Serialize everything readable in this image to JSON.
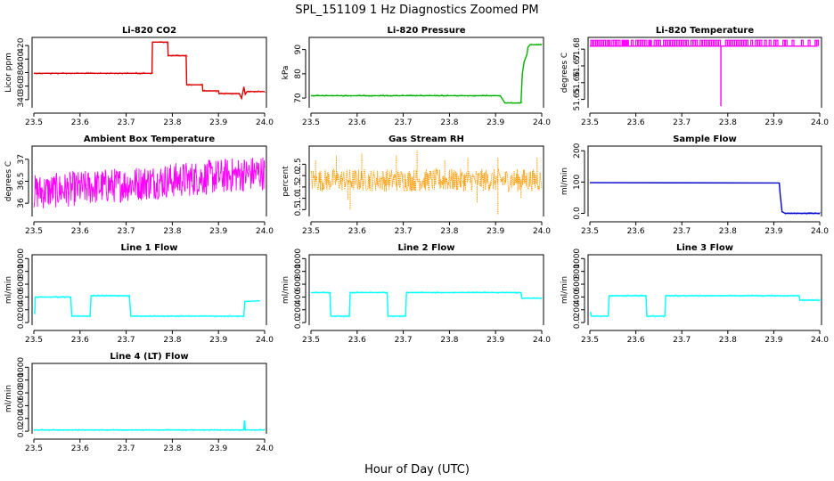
{
  "figure": {
    "title": "SPL_151109  1 Hz Diagnostics Zoomed PM",
    "xlabel": "Hour of Day (UTC)"
  },
  "chart_data": [
    {
      "type": "line",
      "title": "Li-820 CO2",
      "ylabel": "Licor ppm",
      "color": "#dd0000",
      "xlim": [
        23.5,
        24.0
      ],
      "ylim": [
        328,
        432
      ],
      "xticks": [
        23.5,
        23.6,
        23.7,
        23.8,
        23.9,
        24.0
      ],
      "yticks": [
        340,
        360,
        380,
        400,
        420
      ],
      "x": [
        23.5,
        23.756,
        23.757,
        23.79,
        23.791,
        23.83,
        23.831,
        23.865,
        23.866,
        23.9,
        23.901,
        23.945,
        23.95,
        23.955,
        23.958,
        23.962,
        23.965,
        24.0
      ],
      "y": [
        379,
        379,
        425,
        425,
        405,
        405,
        362,
        362,
        353,
        353,
        349,
        349,
        342,
        359,
        348,
        352,
        352,
        352
      ]
    },
    {
      "type": "line",
      "title": "Li-820 Pressure",
      "ylabel": "kPa",
      "color": "#00b000",
      "xlim": [
        23.5,
        24.0
      ],
      "ylim": [
        66,
        95
      ],
      "xticks": [
        23.5,
        23.6,
        23.7,
        23.8,
        23.9,
        24.0
      ],
      "yticks": [
        70,
        80,
        90
      ],
      "x": [
        23.5,
        23.91,
        23.92,
        23.955,
        23.958,
        23.962,
        23.968,
        23.97,
        23.975,
        24.0
      ],
      "y": [
        71,
        71,
        68,
        68,
        80,
        85,
        88,
        91,
        92,
        92
      ]
    },
    {
      "type": "bar",
      "title": "Li-820 Temperature",
      "ylabel": "degrees C",
      "color": "#ff00ff",
      "xlim": [
        23.5,
        24.0
      ],
      "ylim": [
        51.645,
        51.687
      ],
      "xticks": [
        23.5,
        23.6,
        23.7,
        23.8,
        23.9,
        24.0
      ],
      "yticks": [
        51.65,
        51.66,
        51.67,
        51.68
      ],
      "baseline": 51.6818,
      "top": 51.6853,
      "dips": [
        23.502,
        23.505,
        23.509,
        23.513,
        23.516,
        23.52,
        23.525,
        23.53,
        23.537,
        23.54,
        23.548,
        23.552,
        23.558,
        23.562,
        23.57,
        23.572,
        23.578,
        23.58,
        23.59,
        23.6,
        23.605,
        23.61,
        23.615,
        23.62,
        23.628,
        23.63,
        23.64,
        23.645,
        23.65,
        23.66,
        23.665,
        23.67,
        23.675,
        23.68,
        23.685,
        23.69,
        23.695,
        23.7,
        23.705,
        23.71,
        23.72,
        23.725,
        23.73,
        23.74,
        23.745,
        23.75,
        23.755,
        23.76,
        23.765,
        23.77,
        23.775,
        23.78,
        23.795,
        23.8,
        23.805,
        23.81,
        23.815,
        23.82,
        23.825,
        23.83,
        23.835,
        23.84,
        23.85,
        23.86,
        23.865,
        23.87,
        23.88,
        23.89,
        23.9,
        23.905,
        23.92,
        23.925,
        23.94,
        23.96,
        23.975,
        23.99,
        23.993
      ],
      "spike_x": 23.785,
      "spike_y": 51.646
    },
    {
      "type": "line",
      "title": "Ambient Box Temperature",
      "ylabel": "degrees C",
      "color": "#ff00ff",
      "xlim": [
        23.5,
        24.0
      ],
      "ylim": [
        35.7,
        37.3
      ],
      "xticks": [
        23.5,
        23.6,
        23.7,
        23.8,
        23.9,
        24.0
      ],
      "yticks": [
        36.0,
        36.5,
        37.0
      ],
      "trend": [
        [
          23.5,
          36.25
        ],
        [
          24.0,
          36.7
        ]
      ],
      "noise_range": [
        -0.4,
        0.4
      ],
      "max_value": 37.15,
      "min_value": 35.8
    },
    {
      "type": "line",
      "title": "Gas Stream RH",
      "ylabel": "percent",
      "color": "#ff9900",
      "xlim": [
        23.5,
        24.0
      ],
      "ylim": [
        0.2,
        3.3
      ],
      "xticks": [
        23.5,
        23.6,
        23.7,
        23.8,
        23.9,
        24.0
      ],
      "yticks": [
        0.5,
        1.0,
        1.5,
        2.0,
        2.5
      ],
      "mean": 1.8,
      "noise_range": [
        -0.5,
        0.5
      ],
      "spikes": [
        [
          23.51,
          2.7
        ],
        [
          23.555,
          2.9
        ],
        [
          23.58,
          0.9
        ],
        [
          23.61,
          3.0
        ],
        [
          23.685,
          2.9
        ],
        [
          23.73,
          3.1
        ],
        [
          23.79,
          2.7
        ],
        [
          23.84,
          2.8
        ],
        [
          23.905,
          2.8
        ],
        [
          23.99,
          2.8
        ],
        [
          23.585,
          0.5
        ],
        [
          23.86,
          0.8
        ],
        [
          23.905,
          0.3
        ],
        [
          23.955,
          1.0
        ]
      ]
    },
    {
      "type": "line",
      "title": "Sample Flow",
      "ylabel": "ml/min",
      "color": "#0000cc",
      "xlim": [
        23.5,
        24.0
      ],
      "ylim": [
        -10,
        215
      ],
      "xticks": [
        23.5,
        23.6,
        23.7,
        23.8,
        23.9,
        24.0
      ],
      "yticks": [
        0,
        100,
        200
      ],
      "x": [
        23.5,
        23.912,
        23.914,
        23.918,
        23.925,
        24.0
      ],
      "y": [
        98,
        97,
        60,
        5,
        0,
        0
      ]
    },
    {
      "type": "line",
      "title": "Line 1 Flow",
      "ylabel": "ml/min",
      "color": "#00ffff",
      "xlim": [
        23.5,
        24.0
      ],
      "ylim": [
        -40,
        1060
      ],
      "xticks": [
        23.5,
        23.6,
        23.7,
        23.8,
        23.9,
        24.0
      ],
      "yticks": [
        0,
        200,
        400,
        600,
        800,
        1000
      ],
      "x": [
        23.5,
        23.502,
        23.503,
        23.58,
        23.582,
        23.622,
        23.624,
        23.707,
        23.71,
        23.955,
        23.957,
        23.99
      ],
      "y": [
        150,
        150,
        400,
        400,
        100,
        100,
        420,
        420,
        100,
        100,
        330,
        340
      ]
    },
    {
      "type": "line",
      "title": "Line 2 Flow",
      "ylabel": "ml/min",
      "color": "#00ffff",
      "xlim": [
        23.5,
        24.0
      ],
      "ylim": [
        -40,
        1060
      ],
      "xticks": [
        23.5,
        23.6,
        23.7,
        23.8,
        23.9,
        24.0
      ],
      "yticks": [
        0,
        200,
        400,
        600,
        800,
        1000
      ],
      "x": [
        23.5,
        23.541,
        23.543,
        23.583,
        23.585,
        23.665,
        23.667,
        23.705,
        23.707,
        23.955,
        23.957,
        24.0
      ],
      "y": [
        470,
        470,
        100,
        100,
        470,
        470,
        100,
        100,
        470,
        470,
        380,
        380
      ]
    },
    {
      "type": "line",
      "title": "Line 3 Flow",
      "ylabel": "ml/min",
      "color": "#00ffff",
      "xlim": [
        23.5,
        24.0
      ],
      "ylim": [
        -40,
        1060
      ],
      "xticks": [
        23.5,
        23.6,
        23.7,
        23.8,
        23.9,
        24.0
      ],
      "yticks": [
        0,
        200,
        400,
        600,
        800,
        1000
      ],
      "x": [
        23.5,
        23.502,
        23.503,
        23.54,
        23.542,
        23.622,
        23.624,
        23.663,
        23.665,
        23.955,
        23.957,
        24.0
      ],
      "y": [
        150,
        150,
        100,
        100,
        420,
        420,
        100,
        100,
        420,
        420,
        350,
        350
      ]
    },
    {
      "type": "line",
      "title": "Line 4 (LT) Flow",
      "ylabel": "ml/min",
      "color": "#00ffff",
      "xlim": [
        23.5,
        24.0
      ],
      "ylim": [
        -40,
        1060
      ],
      "xticks": [
        23.5,
        23.6,
        23.7,
        23.8,
        23.9,
        24.0
      ],
      "yticks": [
        0,
        200,
        400,
        600,
        800,
        1000
      ],
      "x": [
        23.5,
        23.955,
        23.956,
        23.957,
        23.958,
        24.0
      ],
      "y": [
        20,
        20,
        160,
        160,
        20,
        20
      ]
    }
  ]
}
